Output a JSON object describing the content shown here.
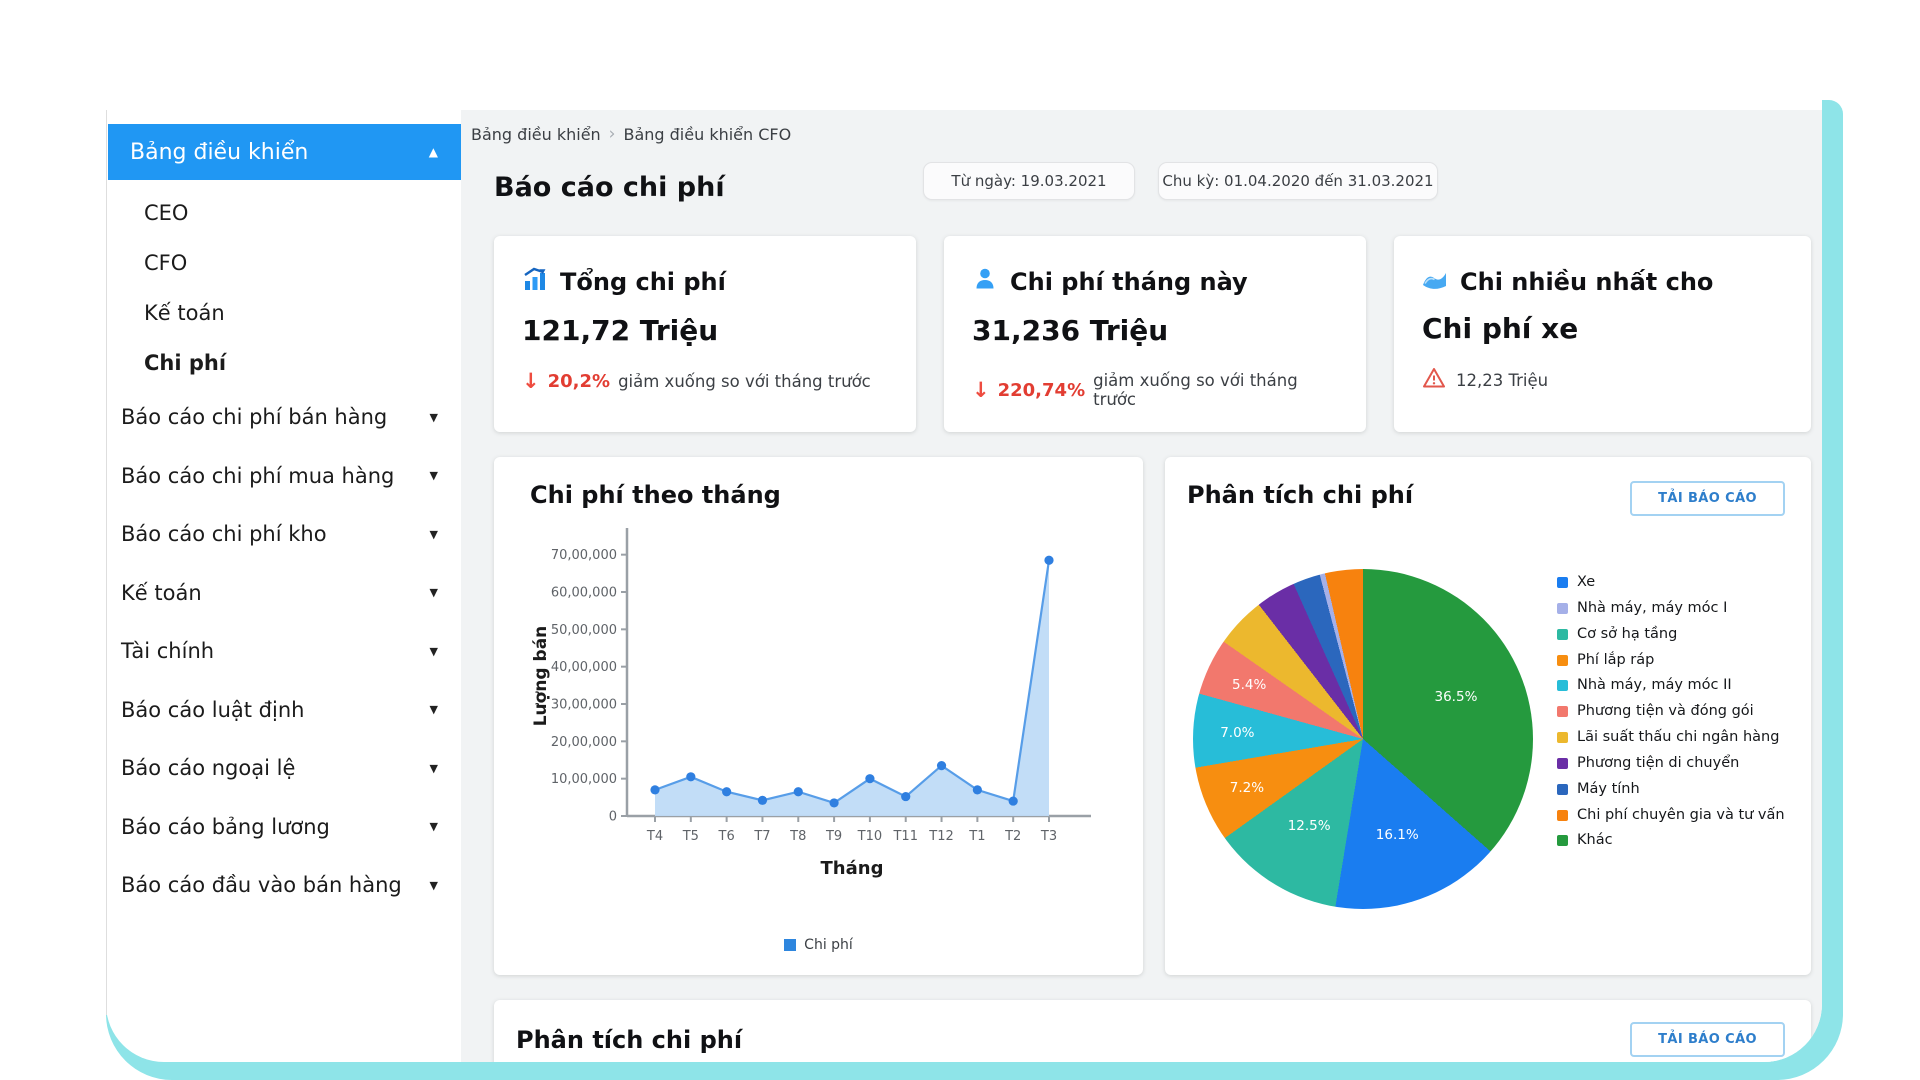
{
  "sidebar": {
    "header_label": "Bảng điều khiển",
    "sub_items": [
      {
        "label": "CEO",
        "active": false
      },
      {
        "label": "CFO",
        "active": false
      },
      {
        "label": "Kế toán",
        "active": false
      },
      {
        "label": "Chi phí",
        "active": true
      }
    ],
    "menu_items": [
      {
        "label": "Báo cáo chi phí bán hàng"
      },
      {
        "label": "Báo cáo chi phí mua hàng"
      },
      {
        "label": "Báo cáo chi phí kho"
      },
      {
        "label": "Kế toán"
      },
      {
        "label": "Tài chính"
      },
      {
        "label": "Báo cáo luật định"
      },
      {
        "label": "Báo cáo ngoại lệ"
      },
      {
        "label": "Báo cáo bảng lương"
      },
      {
        "label": "Báo cáo đầu vào bán hàng"
      }
    ]
  },
  "breadcrumb": {
    "item1": "Bảng điều khiển",
    "separator": "›",
    "item2": "Bảng điều khiển CFO"
  },
  "header": {
    "title": "Báo cáo chi phí",
    "date_from": "Từ ngày: 19.03.2021",
    "period": "Chu kỳ: 01.04.2020 đến 31.03.2021"
  },
  "kpis": [
    {
      "title": "Tổng chi phí",
      "value": "121,72 Triệu",
      "delta_arrow": "↓",
      "delta_pct": "20,2%",
      "delta_text": "giảm xuống so với tháng trước"
    },
    {
      "title": "Chi phí tháng này",
      "value": "31,236 Triệu",
      "delta_arrow": "↓",
      "delta_pct": "220,74%",
      "delta_text": "giảm xuống so với tháng trước"
    },
    {
      "title": "Chi nhiều nhất cho",
      "value": "Chi phí xe",
      "amount": "12,23 Triệu"
    }
  ],
  "line_chart": {
    "type": "area",
    "title": "Chi phí theo tháng",
    "x_label": "Tháng",
    "y_label": "Lượng bán",
    "categories": [
      "T4",
      "T5",
      "T6",
      "T7",
      "T8",
      "T9",
      "T10",
      "T11",
      "T12",
      "T1",
      "T2",
      "T3"
    ],
    "values": [
      700000,
      1050000,
      650000,
      420000,
      650000,
      350000,
      1000000,
      520000,
      1350000,
      700000,
      400000,
      6850000
    ],
    "y_ticks": [
      {
        "v": 7000000,
        "label": "70,00,000"
      },
      {
        "v": 6000000,
        "label": "60,00,000"
      },
      {
        "v": 5000000,
        "label": "50,00,000"
      },
      {
        "v": 4000000,
        "label": "40,00,000"
      },
      {
        "v": 3000000,
        "label": "30,00,000"
      },
      {
        "v": 2000000,
        "label": "20,00,000"
      },
      {
        "v": 1000000,
        "label": "10,00,000"
      },
      {
        "v": 0,
        "label": "0"
      }
    ],
    "y_axis_max": 7500000,
    "legend_label": "Chi phí",
    "legend_color": "#2e86de",
    "line_color": "#579de8",
    "area_color": "#bfdbf7",
    "point_color": "#2f7fe0",
    "grid": false,
    "legend_position": "bottom"
  },
  "pie_chart": {
    "type": "pie",
    "title": "Phân tích chi phí",
    "button_label": "TẢI BÁO CÁO",
    "slices": [
      {
        "label": "Khác",
        "value": 36.5,
        "pct_label": "36.5%",
        "color": "#259a3e",
        "show_label": true
      },
      {
        "label": "Xe",
        "value": 16.1,
        "pct_label": "16.1%",
        "color": "#1a7df0",
        "show_label": true
      },
      {
        "label": "Cơ sở hạ tầng",
        "value": 12.5,
        "pct_label": "12.5%",
        "color": "#2db9a2",
        "show_label": true
      },
      {
        "label": "Phí lắp ráp",
        "value": 7.2,
        "pct_label": "7.2%",
        "color": "#f78e10",
        "show_label": true
      },
      {
        "label": "Nhà máy, máy móc II",
        "value": 7.0,
        "pct_label": "7.0%",
        "color": "#27bdd8",
        "show_label": true
      },
      {
        "label": "Phương tiện và đóng gói",
        "value": 5.4,
        "pct_label": "5.4%",
        "color": "#f2786d",
        "show_label": true
      },
      {
        "label": "Lãi suất thấu chi ngân hàng",
        "value": 4.8,
        "pct_label": "4.8%",
        "color": "#ecb82e",
        "show_label": false
      },
      {
        "label": "Phương tiện di chuyển",
        "value": 3.8,
        "pct_label": "3.8%",
        "color": "#6a2ea6",
        "show_label": false
      },
      {
        "label": "Máy tính",
        "value": 2.6,
        "pct_label": "2.6%",
        "color": "#2b67bd",
        "show_label": false
      },
      {
        "label": "Nhà máy, máy móc I",
        "value": 0.5,
        "pct_label": "0.5%",
        "color": "#a5b0e8",
        "show_label": false
      },
      {
        "label": "Chi phí chuyên gia và tư vấn",
        "value": 3.6,
        "pct_label": "3.6%",
        "color": "#f7820e",
        "show_label": false
      }
    ],
    "legend_order": [
      "Xe",
      "Nhà máy, máy móc I",
      "Cơ sở hạ tầng",
      "Phí lắp ráp",
      "Nhà máy, máy móc II",
      "Phương tiện và đóng gói",
      "Lãi suất thấu chi ngân hàng",
      "Phương tiện di chuyển",
      "Máy tính",
      "Chi phí chuyên gia và tư vấn",
      "Khác"
    ],
    "legend_position": "right"
  },
  "bottom": {
    "title": "Phân tích chi phí",
    "button_label": "TẢI BÁO CÁO"
  },
  "colors": {
    "accent_blue": "#2097f3",
    "negative_red": "#e23d32",
    "frame_teal": "#8ee4e8",
    "content_bg": "#f1f3f4",
    "button_blue": "#2e7ecb"
  }
}
